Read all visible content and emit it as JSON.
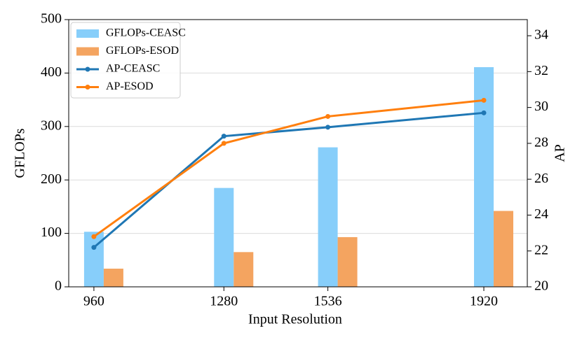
{
  "chart_data": {
    "type": "bar",
    "xlabel": "Input Resolution",
    "ylabel": "GFLOPs",
    "y2label": "AP",
    "x": [
      960,
      1280,
      1536,
      1920
    ],
    "xlim": [
      898,
      2027
    ],
    "xticks": [
      960,
      1280,
      1536,
      1920
    ],
    "ylim": [
      0,
      500
    ],
    "yticks": [
      0,
      100,
      200,
      300,
      400,
      500
    ],
    "y2lim": [
      20,
      34.9
    ],
    "y2ticks": [
      20,
      22,
      24,
      26,
      28,
      30,
      32,
      34
    ],
    "grid": true,
    "legend": "upper left",
    "series": [
      {
        "name": "GFLOPs-CEASC",
        "type": "bar",
        "color": "#87cefa",
        "values": [
          103,
          185,
          261,
          411
        ]
      },
      {
        "name": "GFLOPs-ESOD",
        "type": "bar",
        "color": "#f4a460",
        "values": [
          34,
          65,
          93,
          142
        ]
      },
      {
        "name": "AP-CEASC",
        "type": "line",
        "axis": "y2",
        "color": "#1f77b4",
        "values": [
          22.2,
          28.4,
          28.9,
          29.7
        ]
      },
      {
        "name": "AP-ESOD",
        "type": "line",
        "axis": "y2",
        "color": "#ff7f0e",
        "values": [
          22.8,
          28.0,
          29.5,
          30.4
        ]
      }
    ]
  }
}
